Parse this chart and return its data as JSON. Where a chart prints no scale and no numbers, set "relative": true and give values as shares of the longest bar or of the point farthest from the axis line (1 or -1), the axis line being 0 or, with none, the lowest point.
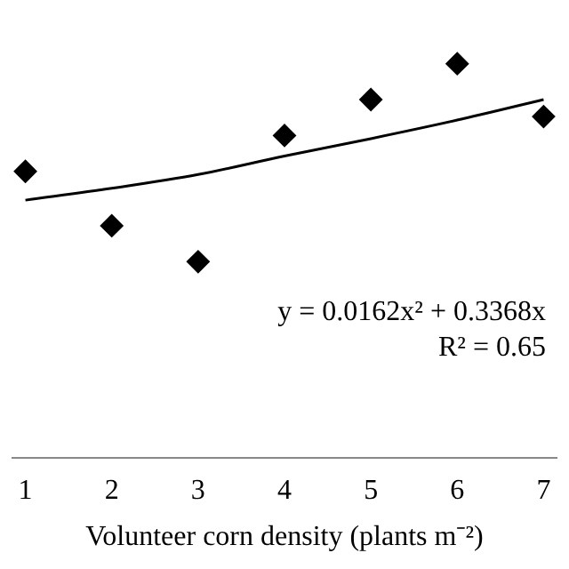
{
  "chart_data": {
    "type": "scatter",
    "xlabel": "Volunteer corn density (plants m⁻²)",
    "relative": true,
    "marker": "diamond",
    "grid": false,
    "legend": false,
    "tick_labels": "x",
    "xlim": [
      0.85,
      7.15
    ],
    "xticks": [
      1,
      2,
      3,
      4,
      5,
      6,
      7
    ],
    "series": [
      {
        "color": "#000000",
        "x": [
          1,
          2,
          3,
          4,
          5,
          6,
          7
        ],
        "values": [
          0.727,
          0.589,
          0.498,
          0.818,
          0.909,
          1,
          0.866
        ]
      },
      {
        "type": "line",
        "color": "#000000",
        "marker": "none",
        "x": [
          1,
          2,
          3,
          4,
          5,
          6,
          7
        ],
        "values": [
          0.654,
          0.684,
          0.719,
          0.766,
          0.81,
          0.857,
          0.909
        ]
      }
    ],
    "annotations": [
      "y = 0.0162x² + 0.3368x",
      "R² = 0.65"
    ]
  }
}
